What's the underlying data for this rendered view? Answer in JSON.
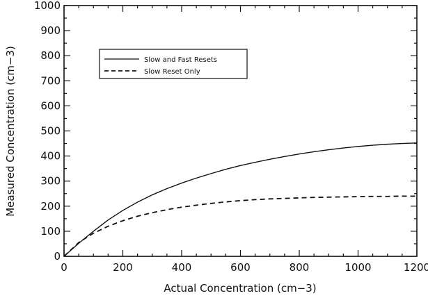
{
  "chart_data": {
    "type": "line",
    "xlabel": "Actual Concentration (cm−3)",
    "ylabel": "Measured Concentration (cm−3)",
    "xlim": [
      0,
      1200
    ],
    "ylim": [
      0,
      1000
    ],
    "x_ticks": [
      0,
      200,
      400,
      600,
      800,
      1000,
      1200
    ],
    "y_ticks": [
      0,
      100,
      200,
      300,
      400,
      500,
      600,
      700,
      800,
      900,
      1000
    ],
    "grid": false,
    "legend_position": "upper-left",
    "series": [
      {
        "name": "Slow and Fast Resets",
        "line_style": "solid",
        "x": [
          0,
          50,
          100,
          150,
          200,
          250,
          300,
          350,
          400,
          450,
          500,
          550,
          600,
          650,
          700,
          750,
          800,
          850,
          900,
          950,
          1000,
          1050,
          1100,
          1150,
          1200
        ],
        "y": [
          0,
          52,
          100,
          145,
          183,
          216,
          245,
          270,
          292,
          312,
          330,
          347,
          362,
          375,
          387,
          398,
          408,
          417,
          425,
          432,
          438,
          443,
          447,
          450,
          452
        ]
      },
      {
        "name": "Slow Reset Only",
        "line_style": "dashed",
        "x": [
          0,
          50,
          100,
          150,
          200,
          250,
          300,
          350,
          400,
          450,
          500,
          550,
          600,
          650,
          700,
          750,
          800,
          850,
          900,
          950,
          1000,
          1050,
          1100,
          1150,
          1200
        ],
        "y": [
          0,
          55,
          92,
          120,
          142,
          160,
          174,
          186,
          196,
          204,
          211,
          217,
          222,
          226,
          229,
          231,
          233,
          235,
          236,
          237,
          238,
          239,
          239,
          240,
          240
        ]
      }
    ]
  }
}
